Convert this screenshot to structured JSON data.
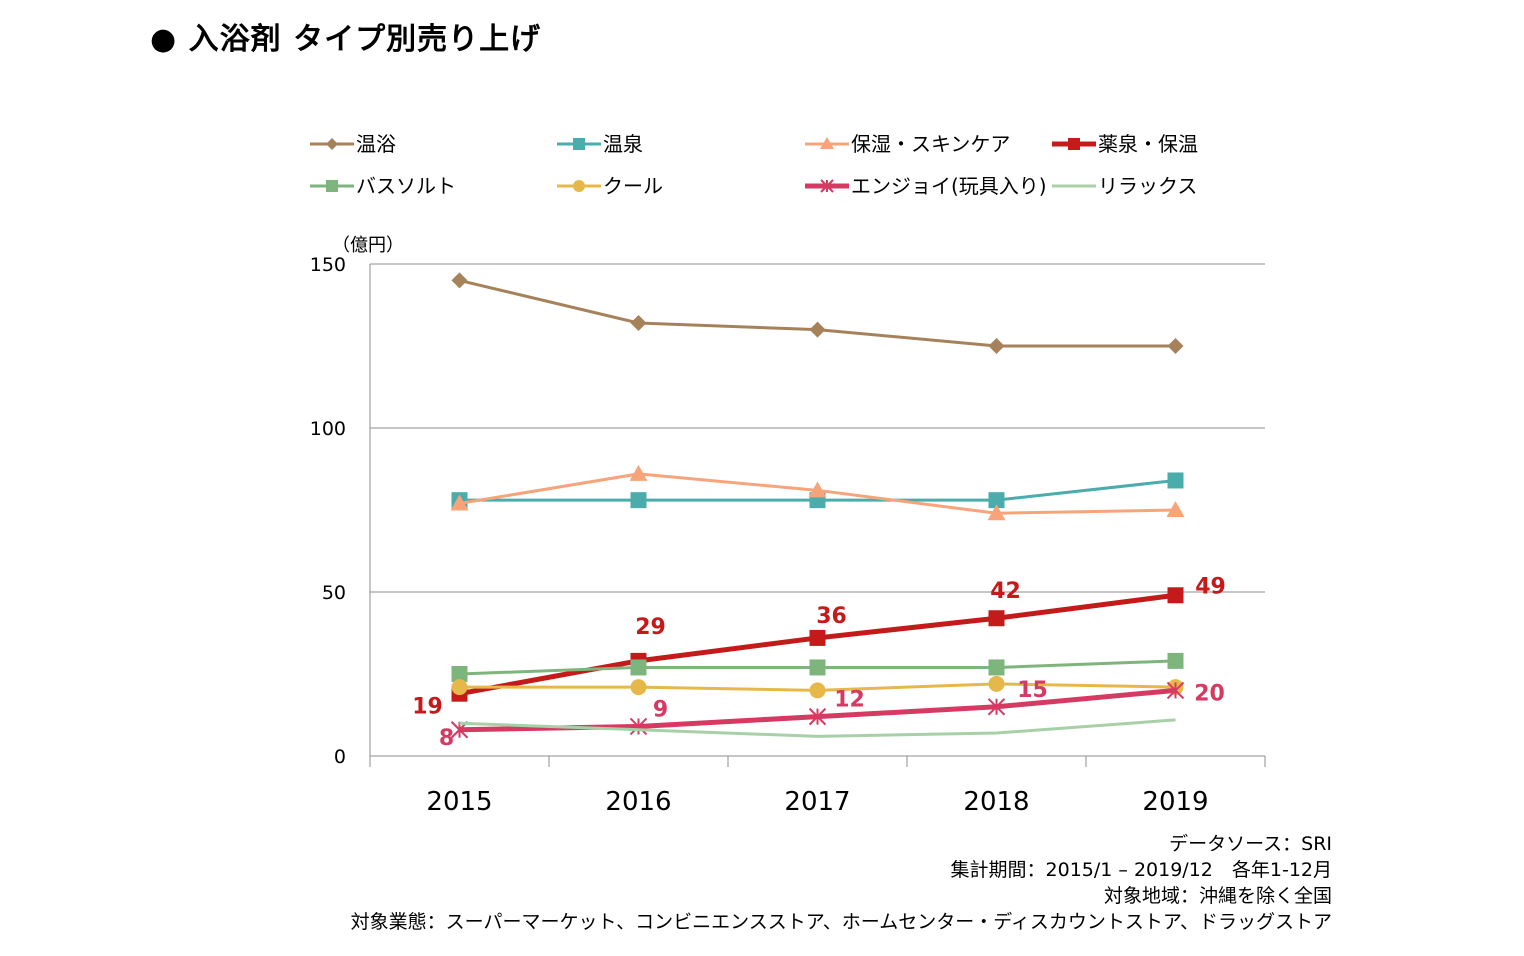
{
  "title": "● 入浴剤 タイプ別売り上げ",
  "chart_data": {
    "type": "line",
    "unit_label": "（億円）",
    "categories": [
      "2015",
      "2016",
      "2017",
      "2018",
      "2019"
    ],
    "ylim": [
      0,
      150
    ],
    "yticks": [
      0,
      50,
      100,
      150
    ],
    "grid": true,
    "legend_position": "top",
    "series": [
      {
        "name": "温浴",
        "values": [
          145,
          132,
          130,
          125,
          125
        ],
        "color": "#A6825A",
        "marker": "diamond",
        "width": 3
      },
      {
        "name": "温泉",
        "values": [
          78,
          78,
          78,
          78,
          84
        ],
        "color": "#4BACAC",
        "marker": "square",
        "width": 3
      },
      {
        "name": "保湿・スキンケア",
        "values": [
          77,
          86,
          81,
          74,
          75
        ],
        "color": "#F7A47A",
        "marker": "triangle",
        "width": 3
      },
      {
        "name": "薬泉・保温",
        "values": [
          19,
          29,
          36,
          42,
          49
        ],
        "color": "#C41A1A",
        "marker": "square",
        "width": 5,
        "labels": [
          "19",
          "29",
          "36",
          "42",
          "49"
        ]
      },
      {
        "name": "バスソルト",
        "values": [
          25,
          27,
          27,
          27,
          29
        ],
        "color": "#7DB57D",
        "marker": "square",
        "width": 3
      },
      {
        "name": "クール",
        "values": [
          21,
          21,
          20,
          22,
          21
        ],
        "color": "#E6B84A",
        "marker": "circle",
        "width": 3
      },
      {
        "name": "エンジョイ(玩具入り)",
        "values": [
          8,
          9,
          12,
          15,
          20
        ],
        "color": "#D63A62",
        "marker": "star",
        "width": 5,
        "labels": [
          "8",
          "9",
          "12",
          "15",
          "20"
        ]
      },
      {
        "name": "リラックス",
        "values": [
          10,
          8,
          6,
          7,
          11
        ],
        "color": "#A8D0A8",
        "marker": "none",
        "width": 3
      }
    ]
  },
  "footnotes": [
    "データソース：SRI",
    "集計期間：2015/1 – 2019/12　各年1-12月",
    "対象地域：沖縄を除く全国",
    "対象業態：スーパーマーケット、コンビニエンスストア、ホームセンター・ディスカウントストア、ドラッグストア"
  ]
}
